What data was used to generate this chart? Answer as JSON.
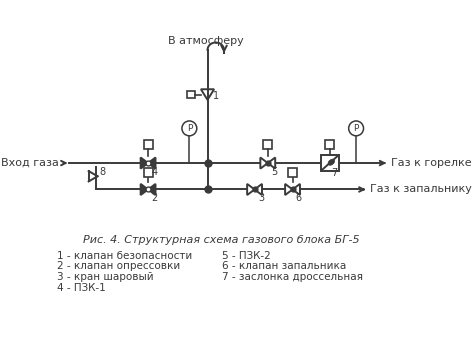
{
  "title": "Рис. 4. Структурная схема газового блока БГ-5",
  "legend_lines": [
    "1 - клапан безопасности",
    "2 - клапан опрессовки",
    "3 - кран шаровый",
    "4 - ПЗК-1"
  ],
  "legend_lines_right": [
    "5 - ПЗК-2",
    "6 - клапан запальника",
    "7 - заслонка дроссельная"
  ],
  "label_atm": "В атмосферу",
  "label_vhod": "Вход газа",
  "label_gorelka": "Газ к горелке",
  "label_zapalnik": "Газ к запальнику",
  "bg_color": "#ffffff",
  "line_color": "#3a3a3a",
  "font_size": 9
}
